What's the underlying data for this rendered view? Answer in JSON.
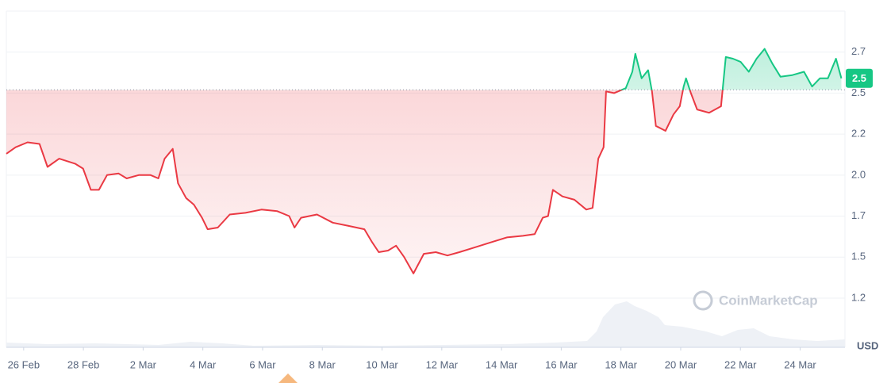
{
  "chart_data": {
    "type": "line",
    "x": [
      -0.58,
      -0.27,
      0.13,
      0.53,
      0.8,
      1.19,
      1.72,
      1.99,
      2.25,
      2.52,
      2.79,
      3.18,
      3.45,
      3.85,
      4.25,
      4.51,
      4.72,
      4.99,
      5.17,
      5.44,
      5.7,
      5.97,
      6.16,
      6.5,
      6.9,
      7.43,
      7.96,
      8.49,
      8.89,
      9.07,
      9.29,
      9.82,
      10.35,
      10.88,
      11.41,
      11.67,
      11.89,
      12.2,
      12.47,
      12.74,
      13.05,
      13.4,
      13.8,
      14.19,
      14.59,
      15.12,
      15.65,
      16.18,
      16.72,
      17.11,
      17.38,
      17.56,
      17.72,
      18.04,
      18.44,
      18.84,
      19.05,
      19.24,
      19.42,
      19.5,
      19.77,
      20.16,
      20.38,
      20.48,
      20.69,
      20.91,
      21.04,
      21.17,
      21.49,
      21.76,
      21.97,
      22.1,
      22.18,
      22.34,
      22.55,
      22.95,
      23.35,
      23.51,
      23.75,
      24.01,
      24.28,
      24.54,
      24.81,
      25.07,
      25.34,
      25.74,
      26.13,
      26.4,
      26.66,
      26.93,
      27.2,
      27.38
    ],
    "values": [
      2.08,
      2.12,
      2.15,
      2.14,
      2.0,
      2.05,
      2.02,
      1.99,
      1.86,
      1.86,
      1.95,
      1.96,
      1.93,
      1.95,
      1.95,
      1.93,
      2.05,
      2.11,
      1.9,
      1.81,
      1.77,
      1.69,
      1.62,
      1.63,
      1.71,
      1.72,
      1.74,
      1.73,
      1.7,
      1.63,
      1.69,
      1.71,
      1.66,
      1.64,
      1.62,
      1.54,
      1.48,
      1.49,
      1.52,
      1.45,
      1.35,
      1.47,
      1.48,
      1.46,
      1.48,
      1.51,
      1.54,
      1.57,
      1.58,
      1.59,
      1.69,
      1.7,
      1.86,
      1.82,
      1.8,
      1.74,
      1.75,
      2.05,
      2.12,
      2.46,
      2.45,
      2.48,
      2.58,
      2.69,
      2.54,
      2.59,
      2.46,
      2.25,
      2.22,
      2.32,
      2.37,
      2.49,
      2.54,
      2.45,
      2.35,
      2.33,
      2.37,
      2.67,
      2.66,
      2.64,
      2.58,
      2.66,
      2.72,
      2.63,
      2.55,
      2.56,
      2.58,
      2.49,
      2.54,
      2.54,
      2.66,
      2.54
    ],
    "baseline": 2.47,
    "colors": {
      "up": "#16c784",
      "down": "#ea3943"
    },
    "current_price": {
      "value": 2.54,
      "label": "2.5"
    },
    "xlim": [
      -0.58,
      27.5
    ],
    "xticks": [
      {
        "value": 0,
        "label": "26 Feb"
      },
      {
        "value": 2,
        "label": "28 Feb"
      },
      {
        "value": 4,
        "label": "2 Mar"
      },
      {
        "value": 6,
        "label": "4 Mar"
      },
      {
        "value": 8,
        "label": "6 Mar"
      },
      {
        "value": 10,
        "label": "8 Mar"
      },
      {
        "value": 12,
        "label": "10 Mar"
      },
      {
        "value": 14,
        "label": "12 Mar"
      },
      {
        "value": 16,
        "label": "14 Mar"
      },
      {
        "value": 18,
        "label": "16 Mar"
      },
      {
        "value": 20,
        "label": "18 Mar"
      },
      {
        "value": 22,
        "label": "20 Mar"
      },
      {
        "value": 24,
        "label": "22 Mar"
      },
      {
        "value": 26,
        "label": "24 Mar"
      }
    ],
    "ylim": [
      0.9,
      2.95
    ],
    "yticks": [
      {
        "value": 1.2,
        "label": "1.2"
      },
      {
        "value": 1.45,
        "label": "1.5"
      },
      {
        "value": 1.7,
        "label": "1.7"
      },
      {
        "value": 1.95,
        "label": "2.0"
      },
      {
        "value": 2.2,
        "label": "2.2"
      },
      {
        "value": 2.45,
        "label": "2.5"
      },
      {
        "value": 2.7,
        "label": "2.7"
      }
    ],
    "grid": true,
    "currency": "USD",
    "watermark": "CoinMarketCap"
  }
}
